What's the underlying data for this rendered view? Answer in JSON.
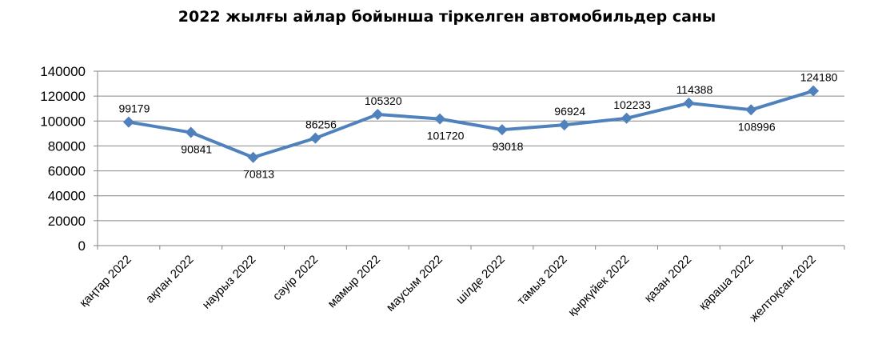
{
  "chart_data": {
    "type": "line",
    "title": "2022 жылғы айлар бойынша тіркелген автомобильдер саны",
    "xlabel": "",
    "ylabel": "",
    "categories": [
      "қаңтар 2022",
      "ақпан 2022",
      "наурыз 2022",
      "сәуір 2022",
      "мамыр 2022",
      "маусым 2022",
      "шілде 2022",
      "тамыз 2022",
      "қыркүйек 2022",
      "қазан 2022",
      "қараша 2022",
      "желтоқсан 2022"
    ],
    "series": [
      {
        "values": [
          99179,
          90841,
          70813,
          86256,
          105320,
          101720,
          93018,
          96924,
          102233,
          114388,
          108996,
          124180
        ],
        "data_labels": [
          "99179",
          "90841",
          "70813",
          "86256",
          "105320",
          "101720",
          "93018",
          "96924",
          "102233",
          "114388",
          "108996",
          "124180"
        ],
        "color": "#4F81BD",
        "marker": "diamond"
      }
    ],
    "ylim": [
      0,
      140000
    ],
    "yticks": [
      "0",
      "20000",
      "40000",
      "60000",
      "80000",
      "100000",
      "120000",
      "140000"
    ],
    "grid": true,
    "legend": "none"
  }
}
